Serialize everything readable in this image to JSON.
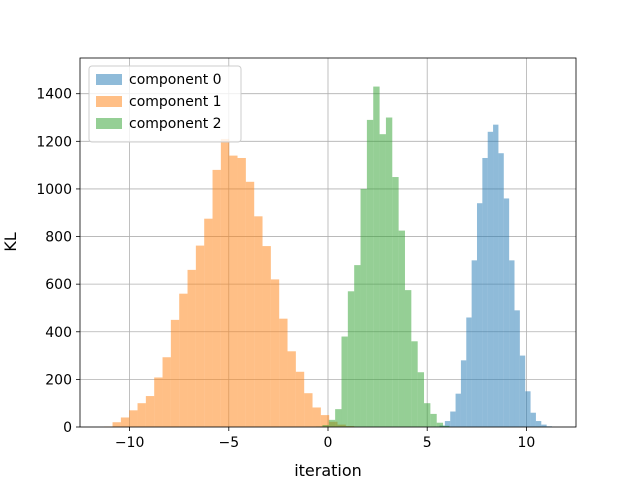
{
  "chart_data": {
    "type": "histogram",
    "xlabel": "iteration",
    "ylabel": "KL",
    "xlim": [
      -12.5,
      12.5
    ],
    "ylim": [
      0,
      1550
    ],
    "xticks": [
      -10,
      -5,
      0,
      5,
      10
    ],
    "xtick_labels": [
      "−10",
      "−5",
      "0",
      "5",
      "10"
    ],
    "yticks": [
      0,
      200,
      400,
      600,
      800,
      1000,
      1200,
      1400
    ],
    "ytick_labels": [
      "0",
      "200",
      "400",
      "600",
      "800",
      "1000",
      "1200",
      "1400"
    ],
    "grid": true,
    "legend_position": "upper-left",
    "series": [
      {
        "name": "component 0",
        "color": "#1f77b4",
        "opacity": 0.5,
        "bins": [
          [
            5.35,
            5.62,
            2
          ],
          [
            5.62,
            5.89,
            6
          ],
          [
            5.89,
            6.16,
            25
          ],
          [
            6.16,
            6.43,
            65
          ],
          [
            6.43,
            6.7,
            140
          ],
          [
            6.7,
            6.97,
            280
          ],
          [
            6.97,
            7.24,
            460
          ],
          [
            7.24,
            7.51,
            700
          ],
          [
            7.51,
            7.78,
            940
          ],
          [
            7.78,
            8.05,
            1130
          ],
          [
            8.05,
            8.32,
            1240
          ],
          [
            8.32,
            8.59,
            1270
          ],
          [
            8.59,
            8.86,
            1150
          ],
          [
            8.86,
            9.13,
            960
          ],
          [
            9.13,
            9.4,
            700
          ],
          [
            9.4,
            9.67,
            490
          ],
          [
            9.67,
            9.94,
            300
          ],
          [
            9.94,
            10.21,
            150
          ],
          [
            10.21,
            10.48,
            60
          ],
          [
            10.48,
            10.75,
            25
          ],
          [
            10.75,
            11.02,
            10
          ],
          [
            11.02,
            11.29,
            3
          ]
        ]
      },
      {
        "name": "component 1",
        "color": "#ff7f0e",
        "opacity": 0.5,
        "bins": [
          [
            -11.28,
            -10.86,
            2
          ],
          [
            -10.86,
            -10.44,
            20
          ],
          [
            -10.44,
            -10.02,
            40
          ],
          [
            -10.02,
            -9.6,
            70
          ],
          [
            -9.6,
            -9.18,
            100
          ],
          [
            -9.18,
            -8.76,
            130
          ],
          [
            -8.76,
            -8.34,
            208
          ],
          [
            -8.34,
            -7.92,
            293
          ],
          [
            -7.92,
            -7.5,
            450
          ],
          [
            -7.5,
            -7.08,
            560
          ],
          [
            -7.08,
            -6.66,
            660
          ],
          [
            -6.66,
            -6.24,
            762
          ],
          [
            -6.24,
            -5.82,
            875
          ],
          [
            -5.82,
            -5.4,
            1080
          ],
          [
            -5.4,
            -4.98,
            1210
          ],
          [
            -4.98,
            -4.56,
            1140
          ],
          [
            -4.56,
            -4.14,
            1130
          ],
          [
            -4.14,
            -3.72,
            1030
          ],
          [
            -3.72,
            -3.3,
            885
          ],
          [
            -3.3,
            -2.88,
            760
          ],
          [
            -2.88,
            -2.46,
            620
          ],
          [
            -2.46,
            -2.04,
            455
          ],
          [
            -2.04,
            -1.62,
            318
          ],
          [
            -1.62,
            -1.2,
            232
          ],
          [
            -1.2,
            -0.78,
            142
          ],
          [
            -0.78,
            -0.36,
            82
          ],
          [
            -0.36,
            0.06,
            50
          ],
          [
            0.06,
            0.48,
            22
          ],
          [
            0.48,
            0.9,
            10
          ],
          [
            0.9,
            1.32,
            4
          ]
        ]
      },
      {
        "name": "component 2",
        "color": "#2ca02c",
        "opacity": 0.5,
        "bins": [
          [
            -0.6,
            -0.28,
            2
          ],
          [
            -0.28,
            0.04,
            8
          ],
          [
            0.04,
            0.36,
            30
          ],
          [
            0.36,
            0.68,
            75
          ],
          [
            0.68,
            1.0,
            380
          ],
          [
            1.0,
            1.32,
            570
          ],
          [
            1.32,
            1.64,
            680
          ],
          [
            1.64,
            1.96,
            1000
          ],
          [
            1.96,
            2.28,
            1290
          ],
          [
            2.28,
            2.6,
            1430
          ],
          [
            2.6,
            2.92,
            1230
          ],
          [
            2.92,
            3.24,
            1300
          ],
          [
            3.24,
            3.56,
            1050
          ],
          [
            3.56,
            3.88,
            825
          ],
          [
            3.88,
            4.2,
            575
          ],
          [
            4.2,
            4.52,
            360
          ],
          [
            4.52,
            4.84,
            230
          ],
          [
            4.84,
            5.16,
            100
          ],
          [
            5.16,
            5.48,
            55
          ],
          [
            5.48,
            5.8,
            18
          ],
          [
            5.8,
            6.12,
            5
          ]
        ]
      }
    ]
  }
}
